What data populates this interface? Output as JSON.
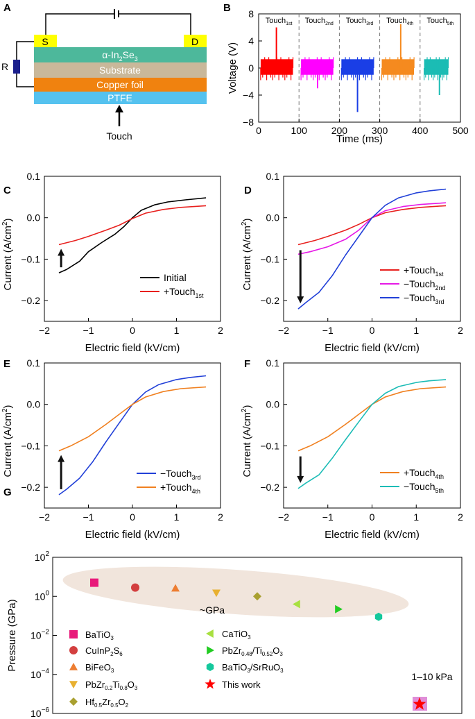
{
  "chart_data": [
    {
      "panel": "A",
      "type": "diagram",
      "terminals": [
        "S",
        "D"
      ],
      "resistor_label": "R",
      "layers": [
        {
          "text": "α-In",
          "sub": "2",
          "text2": "Se",
          "sub2": "3",
          "color": "#4db89b"
        },
        {
          "text": "Substrate",
          "color": "#c9b89a"
        },
        {
          "text": "Copper foil",
          "color": "#f0820f"
        },
        {
          "text": "PTFE",
          "color": "#55c2ef"
        }
      ],
      "touch_label": "Touch"
    },
    {
      "panel": "B",
      "type": "line",
      "xlabel": "Time (ms)",
      "ylabel": "Voltage (V)",
      "xlim": [
        0,
        500
      ],
      "ylim": [
        -8,
        8
      ],
      "xticks": [
        0,
        100,
        200,
        300,
        400,
        500
      ],
      "yticks": [
        -8,
        -4,
        0,
        4,
        8
      ],
      "dividers": [
        100,
        200,
        300,
        400
      ],
      "series": [
        {
          "label": "Touch",
          "sub": "1st",
          "color": "#ff0000",
          "x_range": [
            5,
            85
          ],
          "spike_x": 44,
          "spike_peak": 6.0
        },
        {
          "label": "Touch",
          "sub": "2nd",
          "color": "#ff00ff",
          "x_range": [
            105,
            185
          ],
          "spike_x": 146,
          "spike_peak": -3.0
        },
        {
          "label": "Touch",
          "sub": "3rd",
          "color": "#1a3ee6",
          "x_range": [
            205,
            285
          ],
          "spike_x": 245,
          "spike_peak": -6.5
        },
        {
          "label": "Touch",
          "sub": "4th",
          "color": "#f58a1f",
          "x_range": [
            305,
            385
          ],
          "spike_x": 352,
          "spike_peak": 6.5
        },
        {
          "label": "Touch",
          "sub": "5th",
          "color": "#1bbcb4",
          "x_range": [
            410,
            470
          ],
          "spike_x": 448,
          "spike_peak": -4.0
        }
      ]
    },
    {
      "panel": "C",
      "type": "line",
      "xlabel": "Electric field (kV/cm)",
      "ylabel": "Current (A/cm",
      "ylabel_sup": "2",
      "ylabel_end": ")",
      "xlim": [
        -2,
        2
      ],
      "ylim": [
        -0.25,
        0.1
      ],
      "xticks": [
        -2,
        -1,
        0,
        1,
        2
      ],
      "yticks": [
        -0.2,
        -0.1,
        0.0,
        0.1
      ],
      "arrow": "up",
      "series": [
        {
          "name": "Initial",
          "color": "#000000",
          "x": [
            -1.67,
            -1.5,
            -1.2,
            -1.0,
            -0.7,
            -0.4,
            -0.2,
            0.0,
            0.2,
            0.5,
            0.8,
            1.2,
            1.67
          ],
          "y": [
            -0.133,
            -0.125,
            -0.105,
            -0.082,
            -0.06,
            -0.04,
            -0.022,
            0.0,
            0.018,
            0.031,
            0.038,
            0.043,
            0.048
          ]
        },
        {
          "name": "+Touch",
          "sub": "1st",
          "color": "#e8201e",
          "x": [
            -1.67,
            -1.3,
            -1.0,
            -0.6,
            -0.3,
            0.0,
            0.3,
            0.7,
            1.1,
            1.67
          ],
          "y": [
            -0.065,
            -0.055,
            -0.045,
            -0.03,
            -0.018,
            -0.002,
            0.011,
            0.02,
            0.025,
            0.029
          ]
        }
      ]
    },
    {
      "panel": "D",
      "type": "line",
      "xlabel": "Electric field (kV/cm)",
      "ylabel": "Current (A/cm",
      "ylabel_sup": "2",
      "ylabel_end": ")",
      "xlim": [
        -2,
        2
      ],
      "ylim": [
        -0.25,
        0.1
      ],
      "xticks": [
        -2,
        -1,
        0,
        1,
        2
      ],
      "yticks": [
        -0.2,
        -0.1,
        0.0,
        0.1
      ],
      "arrow": "down",
      "series": [
        {
          "name": "+Touch",
          "sub": "1st",
          "color": "#e8201e",
          "x": [
            -1.67,
            -1.3,
            -1.0,
            -0.6,
            -0.3,
            0.0,
            0.3,
            0.7,
            1.1,
            1.67
          ],
          "y": [
            -0.065,
            -0.055,
            -0.045,
            -0.03,
            -0.016,
            0.0,
            0.012,
            0.02,
            0.025,
            0.029
          ]
        },
        {
          "name": "−Touch",
          "sub": "2nd",
          "color": "#e619e6",
          "x": [
            -1.67,
            -1.4,
            -1.0,
            -0.6,
            -0.3,
            0.0,
            0.3,
            0.7,
            1.1,
            1.67
          ],
          "y": [
            -0.088,
            -0.082,
            -0.07,
            -0.052,
            -0.03,
            0.0,
            0.017,
            0.027,
            0.032,
            0.036
          ]
        },
        {
          "name": "−Touch",
          "sub": "3rd",
          "color": "#2140d8",
          "x": [
            -1.67,
            -1.5,
            -1.2,
            -0.9,
            -0.6,
            -0.3,
            0.0,
            0.3,
            0.6,
            1.0,
            1.3,
            1.67
          ],
          "y": [
            -0.22,
            -0.205,
            -0.18,
            -0.14,
            -0.09,
            -0.045,
            0.0,
            0.03,
            0.048,
            0.06,
            0.065,
            0.069
          ]
        }
      ]
    },
    {
      "panel": "E",
      "type": "line",
      "xlabel": "Electric field (kV/cm)",
      "ylabel": "Current (A/cm",
      "ylabel_sup": "2",
      "ylabel_end": ")",
      "xlim": [
        -2,
        2
      ],
      "ylim": [
        -0.25,
        0.1
      ],
      "xticks": [
        -2,
        -1,
        0,
        1,
        2
      ],
      "yticks": [
        -0.2,
        -0.1,
        0.0,
        0.1
      ],
      "arrow": "up",
      "series": [
        {
          "name": "−Touch",
          "sub": "3rd",
          "color": "#2140d8",
          "x": [
            -1.67,
            -1.5,
            -1.2,
            -0.9,
            -0.6,
            -0.3,
            0.0,
            0.3,
            0.6,
            1.0,
            1.3,
            1.67
          ],
          "y": [
            -0.218,
            -0.205,
            -0.178,
            -0.138,
            -0.09,
            -0.045,
            0.0,
            0.03,
            0.048,
            0.06,
            0.065,
            0.069
          ]
        },
        {
          "name": "+Touch",
          "sub": "4th",
          "color": "#f08020",
          "x": [
            -1.67,
            -1.4,
            -1.0,
            -0.6,
            -0.3,
            0.0,
            0.3,
            0.7,
            1.1,
            1.67
          ],
          "y": [
            -0.112,
            -0.1,
            -0.078,
            -0.048,
            -0.024,
            0.0,
            0.018,
            0.031,
            0.038,
            0.042
          ]
        }
      ]
    },
    {
      "panel": "F",
      "type": "line",
      "xlabel": "Electric field (kV/cm)",
      "ylabel": "Current (A/cm",
      "ylabel_sup": "2",
      "ylabel_end": ")",
      "xlim": [
        -2,
        2
      ],
      "ylim": [
        -0.25,
        0.1
      ],
      "xticks": [
        -2,
        -1,
        0,
        1,
        2
      ],
      "yticks": [
        -0.2,
        -0.1,
        0.0,
        0.1
      ],
      "arrow": "down",
      "series": [
        {
          "name": "+Touch",
          "sub": "4th",
          "color": "#f08020",
          "x": [
            -1.67,
            -1.4,
            -1.0,
            -0.6,
            -0.3,
            0.0,
            0.3,
            0.7,
            1.1,
            1.67
          ],
          "y": [
            -0.112,
            -0.1,
            -0.078,
            -0.048,
            -0.024,
            0.0,
            0.018,
            0.031,
            0.038,
            0.042
          ]
        },
        {
          "name": "−Touch",
          "sub": "5th",
          "color": "#1cbcb6",
          "x": [
            -1.67,
            -1.5,
            -1.2,
            -0.9,
            -0.6,
            -0.3,
            0.0,
            0.3,
            0.6,
            1.0,
            1.3,
            1.67
          ],
          "y": [
            -0.203,
            -0.19,
            -0.17,
            -0.13,
            -0.085,
            -0.042,
            0.0,
            0.027,
            0.043,
            0.053,
            0.057,
            0.06
          ]
        }
      ]
    },
    {
      "panel": "G",
      "type": "scatter",
      "ylabel": "Pressure (GPa)",
      "yscale": "log",
      "ylim_exp": [
        -6,
        2
      ],
      "yticks_exp": [
        -6,
        -4,
        -2,
        0,
        2
      ],
      "band_label": "~GPa",
      "work_label": "1–10 kPa",
      "points": [
        {
          "label": "BaTiO",
          "sub": "3",
          "color": "#e8197a",
          "marker": "square",
          "value": 5.0
        },
        {
          "label": "CuInP",
          "sub": "2",
          "label2": "S",
          "sub2": "6",
          "color": "#d33f3f",
          "marker": "circle",
          "value": 2.8
        },
        {
          "label": "BiFeO",
          "sub": "3",
          "color": "#ed7d31",
          "marker": "triangle-up",
          "value": 2.6
        },
        {
          "label": "PbZr",
          "sub": "0.2",
          "label2": "Ti",
          "sub2": "0.8",
          "label3": "O",
          "sub3": "3",
          "color": "#e8b030",
          "marker": "triangle-down",
          "value": 1.5
        },
        {
          "label": "Hf",
          "sub": "0.5",
          "label2": "Zr",
          "sub2": "0.5",
          "label3": "O",
          "sub3": "2",
          "color": "#a9a030",
          "marker": "diamond",
          "value": 1.0
        },
        {
          "label": "CaTiO",
          "sub": "3",
          "color": "#a8e040",
          "marker": "triangle-left",
          "value": 0.4
        },
        {
          "label": "PbZr",
          "sub": "0.48",
          "label2": "/Ti",
          "sub2": "0.52",
          "label3": "O",
          "sub3": "3",
          "color": "#22cc22",
          "marker": "triangle-right",
          "value": 0.22
        },
        {
          "label": "BaTiO",
          "sub": "3",
          "label2": "/SrRuO",
          "sub2": "3",
          "color": "#14c89c",
          "marker": "hexagon",
          "value": 0.09
        },
        {
          "label": "This work",
          "color": "#ff0000",
          "marker": "star",
          "value": 3e-06
        }
      ]
    }
  ]
}
